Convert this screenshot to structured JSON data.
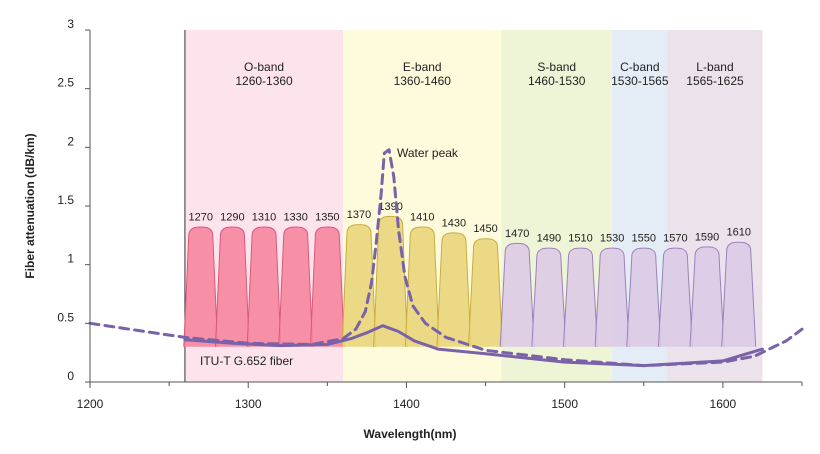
{
  "chart_data": {
    "type": "line",
    "xlabel": "Wavelength(nm)",
    "ylabel": "Fiber attenuation (dB/km)",
    "xlim": [
      1200,
      1650
    ],
    "ylim": [
      0,
      3
    ],
    "x_ticks": [
      1200,
      1300,
      1400,
      1500,
      1600
    ],
    "y_ticks": [
      0,
      0.5,
      1,
      1.5,
      2,
      2.5,
      3
    ],
    "x_tick_labels": [
      "1200",
      "1300",
      "1400",
      "1500",
      "1600"
    ],
    "y_tick_labels": [
      "0",
      "0.5",
      "1",
      "1.5",
      "2",
      "2.5",
      "3"
    ],
    "bands": [
      {
        "name": "O-band",
        "range_label": "1260-1360",
        "start": 1260,
        "end": 1360,
        "color": "#fde4ec"
      },
      {
        "name": "E-band",
        "range_label": "1360-1460",
        "start": 1360,
        "end": 1460,
        "color": "#fdfbdc"
      },
      {
        "name": "S-band",
        "range_label": "1460-1530",
        "start": 1460,
        "end": 1530,
        "color": "#eef4d6"
      },
      {
        "name": "C-band",
        "range_label": "1530-1565",
        "start": 1530,
        "end": 1565,
        "color": "#e4ecf6"
      },
      {
        "name": "L-band",
        "range_label": "1565-1625",
        "start": 1565,
        "end": 1625,
        "color": "#ece2ec"
      }
    ],
    "channels": [
      {
        "label": "1270",
        "center": 1270,
        "peak": 1.3,
        "fill": "#f6859f",
        "stroke": "#d95a7c"
      },
      {
        "label": "1290",
        "center": 1290,
        "peak": 1.3,
        "fill": "#f6859f",
        "stroke": "#d95a7c"
      },
      {
        "label": "1310",
        "center": 1310,
        "peak": 1.3,
        "fill": "#f6859f",
        "stroke": "#d95a7c"
      },
      {
        "label": "1330",
        "center": 1330,
        "peak": 1.3,
        "fill": "#f6859f",
        "stroke": "#d95a7c"
      },
      {
        "label": "1350",
        "center": 1350,
        "peak": 1.3,
        "fill": "#f6859f",
        "stroke": "#d95a7c"
      },
      {
        "label": "1370",
        "center": 1370,
        "peak": 1.32,
        "fill": "#ead57b",
        "stroke": "#c9ad3e"
      },
      {
        "label": "1390",
        "center": 1390,
        "peak": 1.39,
        "fill": "#ead57b",
        "stroke": "#c9ad3e"
      },
      {
        "label": "1410",
        "center": 1410,
        "peak": 1.3,
        "fill": "#ead57b",
        "stroke": "#c9ad3e"
      },
      {
        "label": "1430",
        "center": 1430,
        "peak": 1.25,
        "fill": "#ead57b",
        "stroke": "#c9ad3e"
      },
      {
        "label": "1450",
        "center": 1450,
        "peak": 1.2,
        "fill": "#ead57b",
        "stroke": "#c9ad3e"
      },
      {
        "label": "1470",
        "center": 1470,
        "peak": 1.16,
        "fill": "#dccbe6",
        "stroke": "#9c82bc"
      },
      {
        "label": "1490",
        "center": 1490,
        "peak": 1.12,
        "fill": "#dccbe6",
        "stroke": "#9c82bc"
      },
      {
        "label": "1510",
        "center": 1510,
        "peak": 1.12,
        "fill": "#dccbe6",
        "stroke": "#9c82bc"
      },
      {
        "label": "1530",
        "center": 1530,
        "peak": 1.12,
        "fill": "#dccbe6",
        "stroke": "#9c82bc"
      },
      {
        "label": "1550",
        "center": 1550,
        "peak": 1.12,
        "fill": "#dccbe6",
        "stroke": "#9c82bc"
      },
      {
        "label": "1570",
        "center": 1570,
        "peak": 1.12,
        "fill": "#dccbe6",
        "stroke": "#9c82bc"
      },
      {
        "label": "1590",
        "center": 1590,
        "peak": 1.13,
        "fill": "#dccbe6",
        "stroke": "#9c82bc"
      },
      {
        "label": "1610",
        "center": 1610,
        "peak": 1.17,
        "fill": "#dccbe6",
        "stroke": "#9c82bc"
      }
    ],
    "series": [
      {
        "name": "ITU-T G.652 fiber",
        "style": "solid",
        "color": "#7a62a8",
        "x": [
          1260,
          1290,
          1320,
          1350,
          1365,
          1375,
          1385,
          1395,
          1405,
          1420,
          1450,
          1500,
          1550,
          1600,
          1625
        ],
        "y": [
          0.36,
          0.33,
          0.31,
          0.32,
          0.37,
          0.42,
          0.48,
          0.43,
          0.35,
          0.28,
          0.24,
          0.17,
          0.14,
          0.18,
          0.28
        ]
      },
      {
        "name": "Water peak",
        "style": "dashed",
        "color": "#7a62a8",
        "x": [
          1200,
          1230,
          1260,
          1300,
          1340,
          1360,
          1368,
          1374,
          1378,
          1381,
          1384,
          1386,
          1389,
          1392,
          1395,
          1399,
          1404,
          1412,
          1425,
          1450,
          1500,
          1550,
          1600,
          1620,
          1640,
          1650
        ],
        "y": [
          0.5,
          0.44,
          0.38,
          0.33,
          0.32,
          0.37,
          0.45,
          0.6,
          0.85,
          1.2,
          1.6,
          1.95,
          1.98,
          1.75,
          1.3,
          0.9,
          0.65,
          0.5,
          0.38,
          0.27,
          0.19,
          0.14,
          0.17,
          0.22,
          0.35,
          0.45
        ]
      }
    ],
    "annotations": {
      "water_peak": "Water peak",
      "fiber_label": "ITU-T G.652 fiber"
    }
  }
}
